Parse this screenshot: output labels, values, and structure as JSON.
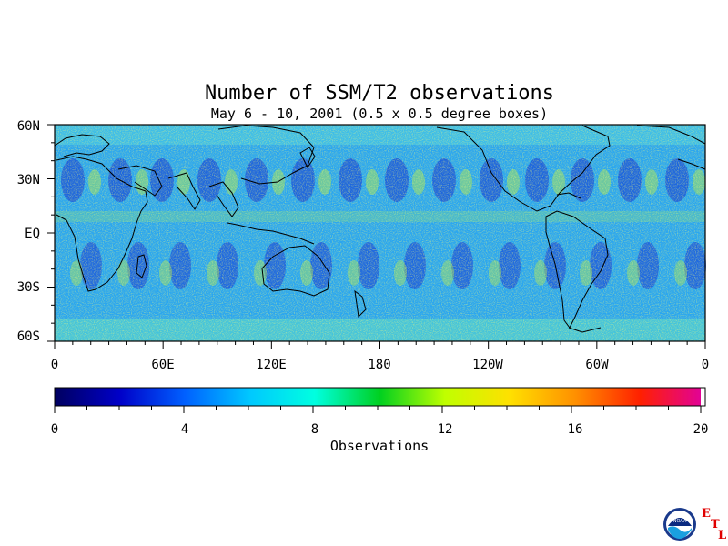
{
  "title": "Number of SSM/T2 observations",
  "subtitle": "May 6 - 10, 2001 (0.5 x 0.5 degree boxes)",
  "lat_labels": [
    "60N",
    "30N",
    "EQ",
    "30S",
    "60S"
  ],
  "lon_labels": [
    "0",
    "60E",
    "120E",
    "180",
    "120W",
    "60W",
    "0"
  ],
  "colorbar": {
    "title": "Observations",
    "ticks": [
      "0",
      "4",
      "8",
      "12",
      "16",
      "20"
    ],
    "range": [
      0,
      20
    ],
    "colors": [
      "#000060",
      "#0000c8",
      "#0060ff",
      "#00c8ff",
      "#00ffe0",
      "#00d020",
      "#c0ff00",
      "#ffe000",
      "#ff9000",
      "#ff2000",
      "#e000a0"
    ]
  },
  "logo": {
    "agency": "NOAA",
    "lab_letters": [
      "E",
      "T",
      "L"
    ]
  }
}
